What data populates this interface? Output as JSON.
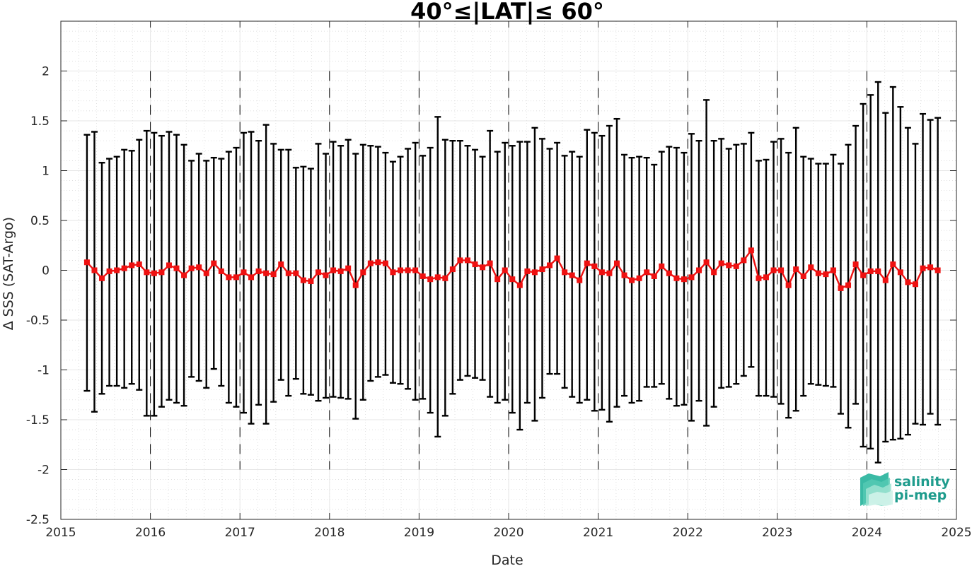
{
  "chart_data": {
    "type": "line",
    "title": "40°≤|LAT|≤ 60°",
    "xlabel": "Date",
    "ylabel": "∆ SSS (SAT-Argo)",
    "xlim": [
      "2015-01-01",
      "2025-01-01"
    ],
    "ylim": [
      -2.5,
      2.5
    ],
    "x_tick_labels": [
      "2015",
      "2016",
      "2017",
      "2018",
      "2019",
      "2020",
      "2021",
      "2022",
      "2023",
      "2024",
      "2025"
    ],
    "y_tick_labels": [
      "-2.5",
      "-2",
      "-1.5",
      "-1",
      "-0.5",
      "0",
      "0.5",
      "1",
      "1.5",
      "2"
    ],
    "y_tick_values": [
      -2.5,
      -2,
      -1.5,
      -1,
      -0.5,
      0,
      0.5,
      1,
      1.5,
      2
    ],
    "grid": true,
    "minor_grid": true,
    "year_markers": [
      "2016-01-01",
      "2017-01-01",
      "2018-01-01",
      "2019-01-01",
      "2020-01-01",
      "2021-01-01",
      "2022-01-01",
      "2023-01-01",
      "2024-01-01"
    ],
    "series": [
      {
        "color": "#ee1111",
        "error_bar_color": "#000000",
        "x": [
          "2015-04",
          "2015-05",
          "2015-06",
          "2015-07",
          "2015-08",
          "2015-09",
          "2015-10",
          "2015-11",
          "2015-12",
          "2016-01",
          "2016-02",
          "2016-03",
          "2016-04",
          "2016-05",
          "2016-06",
          "2016-07",
          "2016-08",
          "2016-09",
          "2016-10",
          "2016-11",
          "2016-12",
          "2017-01",
          "2017-02",
          "2017-03",
          "2017-04",
          "2017-05",
          "2017-06",
          "2017-07",
          "2017-08",
          "2017-09",
          "2017-10",
          "2017-11",
          "2017-12",
          "2018-01",
          "2018-02",
          "2018-03",
          "2018-04",
          "2018-05",
          "2018-06",
          "2018-07",
          "2018-08",
          "2018-09",
          "2018-10",
          "2018-11",
          "2018-12",
          "2019-01",
          "2019-02",
          "2019-03",
          "2019-04",
          "2019-05",
          "2019-06",
          "2019-07",
          "2019-08",
          "2019-09",
          "2019-10",
          "2019-11",
          "2019-12",
          "2020-01",
          "2020-02",
          "2020-03",
          "2020-04",
          "2020-05",
          "2020-06",
          "2020-07",
          "2020-08",
          "2020-09",
          "2020-10",
          "2020-11",
          "2020-12",
          "2021-01",
          "2021-02",
          "2021-03",
          "2021-04",
          "2021-05",
          "2021-06",
          "2021-07",
          "2021-08",
          "2021-09",
          "2021-10",
          "2021-11",
          "2021-12",
          "2022-01",
          "2022-02",
          "2022-03",
          "2022-04",
          "2022-05",
          "2022-06",
          "2022-07",
          "2022-08",
          "2022-09",
          "2022-10",
          "2022-11",
          "2022-12",
          "2023-01",
          "2023-02",
          "2023-03",
          "2023-04",
          "2023-05",
          "2023-06",
          "2023-07",
          "2023-08",
          "2023-09",
          "2023-10",
          "2023-11",
          "2023-12",
          "2024-01",
          "2024-02",
          "2024-03",
          "2024-04",
          "2024-05",
          "2024-06",
          "2024-07",
          "2024-08",
          "2024-09",
          "2024-10"
        ],
        "values": [
          0.08,
          0.0,
          -0.08,
          -0.01,
          0.0,
          0.02,
          0.05,
          0.06,
          -0.02,
          -0.03,
          -0.02,
          0.05,
          0.02,
          -0.05,
          0.02,
          0.03,
          -0.03,
          0.07,
          -0.01,
          -0.07,
          -0.07,
          -0.02,
          -0.07,
          -0.01,
          -0.03,
          -0.04,
          0.06,
          -0.03,
          -0.03,
          -0.1,
          -0.11,
          -0.02,
          -0.05,
          0.0,
          -0.01,
          0.02,
          -0.15,
          -0.02,
          0.07,
          0.08,
          0.07,
          -0.02,
          0.0,
          0.0,
          0.0,
          -0.06,
          -0.09,
          -0.07,
          -0.08,
          0.01,
          0.1,
          0.1,
          0.06,
          0.03,
          0.07,
          -0.09,
          0.0,
          -0.09,
          -0.15,
          -0.01,
          -0.02,
          0.01,
          0.05,
          0.12,
          -0.02,
          -0.05,
          -0.1,
          0.07,
          0.04,
          -0.02,
          -0.03,
          0.07,
          -0.05,
          -0.1,
          -0.08,
          -0.02,
          -0.06,
          0.04,
          -0.03,
          -0.08,
          -0.09,
          -0.07,
          0.0,
          0.08,
          -0.02,
          0.07,
          0.05,
          0.04,
          0.1,
          0.2,
          -0.08,
          -0.07,
          0.0,
          0.0,
          -0.15,
          0.01,
          -0.06,
          0.03,
          -0.03,
          -0.04,
          0.0,
          -0.18,
          -0.15,
          0.06,
          -0.05,
          -0.01,
          -0.01,
          -0.1,
          0.06,
          -0.02,
          -0.12,
          -0.14,
          0.02,
          0.03,
          0.0
        ],
        "upper": [
          1.36,
          1.39,
          1.08,
          1.12,
          1.14,
          1.21,
          1.2,
          1.31,
          1.4,
          1.38,
          1.35,
          1.39,
          1.36,
          1.26,
          1.1,
          1.17,
          1.1,
          1.13,
          1.12,
          1.19,
          1.23,
          1.38,
          1.39,
          1.3,
          1.46,
          1.27,
          1.21,
          1.21,
          1.03,
          1.04,
          1.02,
          1.27,
          1.17,
          1.29,
          1.25,
          1.31,
          1.17,
          1.26,
          1.25,
          1.24,
          1.18,
          1.09,
          1.14,
          1.22,
          1.28,
          1.15,
          1.23,
          1.54,
          1.31,
          1.3,
          1.3,
          1.25,
          1.21,
          1.14,
          1.4,
          1.19,
          1.28,
          1.25,
          1.29,
          1.29,
          1.43,
          1.32,
          1.22,
          1.28,
          1.15,
          1.19,
          1.14,
          1.41,
          1.38,
          1.35,
          1.45,
          1.52,
          1.16,
          1.13,
          1.14,
          1.13,
          1.06,
          1.19,
          1.24,
          1.23,
          1.18,
          1.37,
          1.3,
          1.71,
          1.3,
          1.32,
          1.22,
          1.26,
          1.27,
          1.38,
          1.1,
          1.11,
          1.29,
          1.32,
          1.18,
          1.43,
          1.14,
          1.12,
          1.07,
          1.07,
          1.16,
          1.07,
          1.26,
          1.45,
          1.67,
          1.76,
          1.89,
          1.58,
          1.84,
          1.64,
          1.43,
          1.27,
          1.57,
          1.51,
          1.53
        ],
        "lower": [
          -1.21,
          -1.42,
          -1.24,
          -1.16,
          -1.16,
          -1.18,
          -1.14,
          -1.2,
          -1.46,
          -1.46,
          -1.37,
          -1.3,
          -1.33,
          -1.36,
          -1.07,
          -1.11,
          -1.18,
          -0.99,
          -1.16,
          -1.33,
          -1.37,
          -1.43,
          -1.54,
          -1.35,
          -1.54,
          -1.32,
          -1.1,
          -1.26,
          -1.09,
          -1.24,
          -1.25,
          -1.31,
          -1.28,
          -1.27,
          -1.28,
          -1.29,
          -1.49,
          -1.3,
          -1.11,
          -1.07,
          -1.05,
          -1.13,
          -1.14,
          -1.19,
          -1.3,
          -1.29,
          -1.43,
          -1.67,
          -1.46,
          -1.24,
          -1.1,
          -1.06,
          -1.08,
          -1.1,
          -1.27,
          -1.33,
          -1.3,
          -1.43,
          -1.6,
          -1.33,
          -1.51,
          -1.28,
          -1.04,
          -1.04,
          -1.18,
          -1.27,
          -1.33,
          -1.3,
          -1.41,
          -1.4,
          -1.52,
          -1.37,
          -1.26,
          -1.33,
          -1.31,
          -1.17,
          -1.17,
          -1.14,
          -1.29,
          -1.36,
          -1.35,
          -1.51,
          -1.31,
          -1.56,
          -1.37,
          -1.18,
          -1.17,
          -1.14,
          -1.06,
          -0.97,
          -1.26,
          -1.26,
          -1.27,
          -1.34,
          -1.48,
          -1.41,
          -1.26,
          -1.14,
          -1.15,
          -1.16,
          -1.17,
          -1.44,
          -1.58,
          -1.34,
          -1.77,
          -1.79,
          -1.93,
          -1.72,
          -1.7,
          -1.69,
          -1.65,
          -1.54,
          -1.55,
          -1.44,
          -1.55
        ]
      }
    ]
  },
  "logo": {
    "line1": "salinity",
    "line2": "pi-mep",
    "color": "#1f9c8d"
  }
}
